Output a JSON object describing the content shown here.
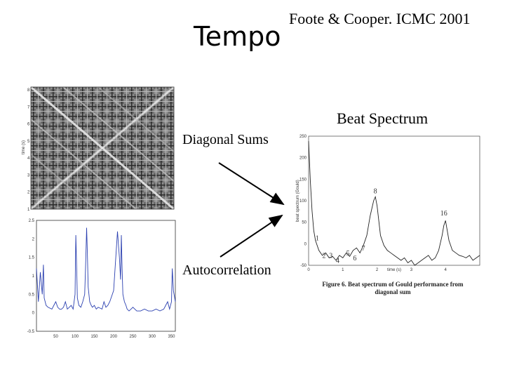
{
  "slide": {
    "title": "Tempo",
    "citation": "Foote & Cooper. ICMC 2001",
    "beat_spectrum_title": "Beat Spectrum",
    "diagonal_sums_label": "Diagonal Sums",
    "autocorrelation_label": "Autocorrelation"
  },
  "similarity_matrix": {
    "ylabel": "time (s)",
    "y_ticks": [
      "8",
      "7",
      "6",
      "5",
      "4",
      "3",
      "2",
      "1"
    ]
  },
  "chart_data": [
    {
      "type": "line",
      "name": "autocorrelation",
      "xlim": [
        0,
        360
      ],
      "ylim": [
        -0.5,
        2.5
      ],
      "x_ticks": [
        "50",
        "100",
        "150",
        "200",
        "250",
        "300",
        "350"
      ],
      "y_ticks": [
        "2.5",
        "2",
        "1.5",
        "1",
        "0.5",
        "0",
        "-0.5"
      ],
      "x": [
        0,
        5,
        10,
        15,
        18,
        20,
        25,
        30,
        40,
        45,
        50,
        55,
        60,
        65,
        70,
        75,
        80,
        85,
        90,
        95,
        100,
        102,
        104,
        106,
        110,
        115,
        120,
        125,
        128,
        130,
        132,
        134,
        138,
        142,
        145,
        150,
        155,
        160,
        170,
        175,
        180,
        185,
        190,
        200,
        205,
        210,
        215,
        218,
        220,
        222,
        224,
        228,
        232,
        235,
        240,
        245,
        250,
        255,
        260,
        270,
        280,
        290,
        300,
        310,
        320,
        330,
        335,
        340,
        345,
        350,
        352,
        355,
        360
      ],
      "y": [
        1.2,
        0.3,
        1.1,
        0.5,
        1.3,
        0.4,
        0.2,
        0.15,
        0.1,
        0.2,
        0.3,
        0.15,
        0.1,
        0.1,
        0.15,
        0.3,
        0.1,
        0.15,
        0.2,
        0.1,
        0.5,
        2.1,
        1.3,
        0.4,
        0.2,
        0.15,
        0.3,
        0.5,
        1.5,
        2.3,
        1.6,
        0.7,
        0.3,
        0.2,
        0.15,
        0.2,
        0.1,
        0.15,
        0.1,
        0.3,
        0.15,
        0.2,
        0.3,
        0.6,
        1.4,
        2.2,
        1.5,
        0.9,
        2.1,
        1.2,
        0.5,
        0.3,
        0.2,
        0.1,
        0.05,
        0.1,
        0.15,
        0.1,
        0.05,
        0.05,
        0.1,
        0.05,
        0.05,
        0.1,
        0.05,
        0.1,
        0.2,
        0.3,
        0.1,
        0.3,
        1.2,
        0.6,
        0.3
      ]
    },
    {
      "type": "line",
      "name": "beat-spectrum",
      "ylabel": "beat spectrum (Gould)",
      "xlabel": "time (s)",
      "xlim": [
        0,
        5
      ],
      "ylim": [
        -10,
        250
      ],
      "x_ticks": [
        "0",
        "1",
        "2",
        "3",
        "4"
      ],
      "y_ticks": [
        "250",
        "200",
        "150",
        "100",
        "50",
        "0",
        "-50"
      ],
      "x": [
        0,
        0.05,
        0.1,
        0.15,
        0.2,
        0.3,
        0.4,
        0.5,
        0.6,
        0.7,
        0.8,
        0.9,
        1.0,
        1.1,
        1.2,
        1.3,
        1.4,
        1.5,
        1.6,
        1.7,
        1.8,
        1.9,
        1.95,
        2.0,
        2.05,
        2.1,
        2.2,
        2.3,
        2.4,
        2.5,
        2.6,
        2.7,
        2.8,
        2.9,
        3.0,
        3.1,
        3.2,
        3.3,
        3.4,
        3.5,
        3.6,
        3.7,
        3.8,
        3.9,
        3.95,
        4.0,
        4.05,
        4.1,
        4.2,
        4.3,
        4.4,
        4.5,
        4.6,
        4.7,
        4.8,
        4.9,
        5.0
      ],
      "y": [
        240,
        160,
        100,
        60,
        40,
        20,
        10,
        15,
        5,
        8,
        0,
        10,
        5,
        15,
        8,
        20,
        25,
        15,
        30,
        50,
        90,
        120,
        128,
        110,
        80,
        50,
        30,
        20,
        15,
        10,
        5,
        0,
        5,
        -5,
        0,
        -10,
        -5,
        0,
        5,
        10,
        0,
        5,
        20,
        50,
        70,
        80,
        60,
        40,
        20,
        15,
        10,
        8,
        5,
        10,
        0,
        5,
        10
      ]
    }
  ],
  "beat_peak_labels": [
    "1",
    "2",
    "3",
    "4",
    "5",
    "6",
    "7",
    "8",
    "16"
  ],
  "beat_caption_line1": "Figure 6.  Beat spectrum of Gould performance from",
  "beat_caption_line2": "diagonal sum"
}
